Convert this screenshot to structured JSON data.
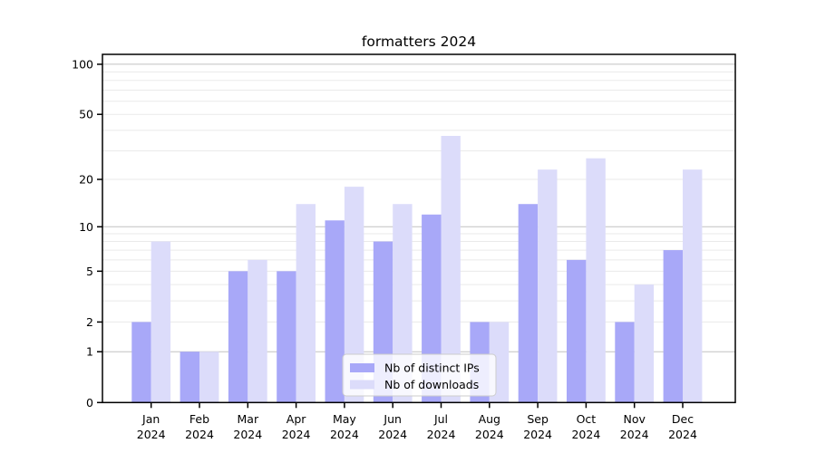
{
  "chart_data": {
    "type": "bar",
    "title": "formatters 2024",
    "categories": [
      "Jan",
      "Feb",
      "Mar",
      "Apr",
      "May",
      "Jun",
      "Jul",
      "Aug",
      "Sep",
      "Oct",
      "Nov",
      "Dec"
    ],
    "category_year": "2024",
    "series": [
      {
        "name": "Nb of distinct IPs",
        "color": "#a8a8f8",
        "values": [
          2,
          1,
          5,
          5,
          11,
          8,
          12,
          2,
          14,
          6,
          2,
          7
        ]
      },
      {
        "name": "Nb of downloads",
        "color": "#dcdcfa",
        "values": [
          8,
          1,
          6,
          14,
          18,
          14,
          37,
          2,
          23,
          27,
          4,
          23
        ]
      }
    ],
    "xlabel": "",
    "ylabel": "",
    "y_axis": {
      "scale": "log1p",
      "tick_values": [
        0,
        1,
        2,
        5,
        10,
        20,
        50,
        100
      ],
      "major_gridlines": [
        1,
        10,
        100
      ],
      "minor_gridlines": [
        2,
        3,
        4,
        5,
        6,
        7,
        8,
        9,
        20,
        30,
        40,
        50,
        60,
        70,
        80,
        90
      ],
      "ylim": [
        0,
        115
      ]
    },
    "legend": {
      "position": "bottom-center",
      "entries": [
        "Nb of distinct IPs",
        "Nb of downloads"
      ]
    },
    "grid": true
  },
  "colors": {
    "major_grid": "#c2c2c2",
    "minor_grid": "#eaeaea",
    "axis": "#000000",
    "text": "#000000",
    "legend_border": "#cccccc",
    "legend_bg_opacity": 0.8
  }
}
